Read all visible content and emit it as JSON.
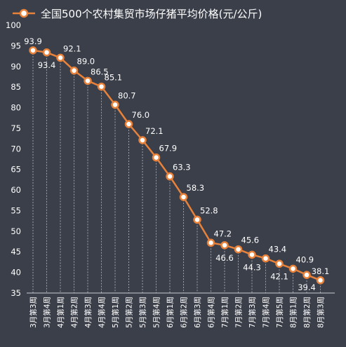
{
  "chart_data": {
    "type": "line",
    "title": "",
    "xlabel": "",
    "ylabel": "",
    "legend": {
      "position": "top",
      "entries": [
        "全国500个农村集贸市场仔猪平均价格(元/公斤)"
      ]
    },
    "ylim": [
      35,
      100
    ],
    "ytick_step": 5,
    "grid": {
      "horizontal": false,
      "vertical_drop_lines": true
    },
    "categories": [
      "3月第3周",
      "3月第4周",
      "4月第1周",
      "4月第2周",
      "4月第3周",
      "4月第4周",
      "5月第1周",
      "5月第2周",
      "5月第3周",
      "5月第4周",
      "6月第1周",
      "6月第2周",
      "6月第3周",
      "6月第4周",
      "7月第1周",
      "7月第2周",
      "7月第3周",
      "7月第4周",
      "7月第5周",
      "8月第1周",
      "8月第2周",
      "8月第3周"
    ],
    "series": [
      {
        "name": "全国500个农村集贸市场仔猪平均价格(元/公斤)",
        "values": [
          93.9,
          93.4,
          92.1,
          89.0,
          86.5,
          85.1,
          80.7,
          76.0,
          72.1,
          67.9,
          63.3,
          58.3,
          52.8,
          47.2,
          46.6,
          45.6,
          44.3,
          43.4,
          42.1,
          40.9,
          39.4,
          38.1
        ]
      }
    ],
    "colors": {
      "line": "#e8823a",
      "marker_fill": "#ffffff",
      "background": "#3b3f4a",
      "text": "#ffffff",
      "drop_line": "#b9bcc4"
    }
  }
}
